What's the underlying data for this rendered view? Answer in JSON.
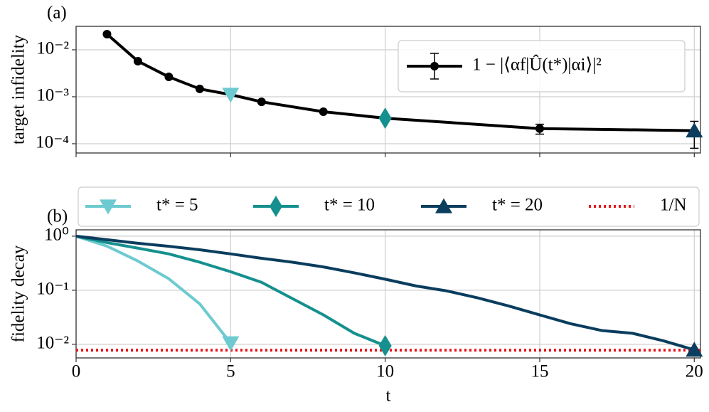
{
  "chart_data": [
    {
      "type": "line",
      "panel_label": "(a)",
      "ylabel": "target infidelity",
      "log_y": true,
      "grid": true,
      "legend": "upper right",
      "show_xticklabels": false,
      "xlim": [
        0,
        20.2
      ],
      "xticks": [
        0,
        5,
        10,
        15,
        20
      ],
      "ylim": [
        6.35e-05,
        0.0316
      ],
      "yticks": [
        {
          "value": 0.0001,
          "label": "10⁻⁴"
        },
        {
          "value": 0.001,
          "label": "10⁻³"
        },
        {
          "value": 0.01,
          "label": "10⁻²"
        }
      ],
      "series": [
        {
          "name": "1 − |⟨αf|Û(t*)|αi⟩|²",
          "color": "#000000",
          "x": [
            1,
            2,
            3,
            4,
            5,
            6,
            8,
            10,
            15,
            20
          ],
          "values": [
            0.0215,
            0.00572,
            0.00265,
            0.00147,
            0.00111,
            0.00078,
            0.00048,
            0.00035,
            0.00021,
            0.00019
          ],
          "yerr": [
            null,
            null,
            null,
            null,
            null,
            null,
            null,
            null,
            5e-05,
            0.00011
          ],
          "markers": [
            "circle",
            "circle",
            "circle",
            "circle",
            "triangle-down",
            "circle",
            "circle",
            "diamond",
            "circle",
            "triangle-up"
          ],
          "marker_colors": [
            "#000000",
            "#000000",
            "#000000",
            "#000000",
            "#6ccad0",
            "#000000",
            "#000000",
            "#15908f",
            "#000000",
            "#0a3d5e"
          ]
        }
      ]
    },
    {
      "type": "line",
      "panel_label": "(b)",
      "ylabel": "fidelity decay",
      "xlabel": "t",
      "log_y": true,
      "grid": true,
      "legend": "above",
      "show_xticklabels": true,
      "xlim": [
        0,
        20.2
      ],
      "xticks": [
        0,
        5,
        10,
        15,
        20
      ],
      "ylim": [
        0.0056,
        1.31
      ],
      "yticks": [
        {
          "value": 0.01,
          "label": "10⁻²"
        },
        {
          "value": 0.1,
          "label": "10⁻¹"
        },
        {
          "value": 1,
          "label": "10⁰"
        }
      ],
      "series": [
        {
          "name": "t* = 5",
          "color": "#6ccad0",
          "end_marker": "triangle-down",
          "x": [
            0,
            1,
            2,
            3,
            4,
            5
          ],
          "values": [
            1,
            0.654,
            0.347,
            0.163,
            0.056,
            0.0105
          ]
        },
        {
          "name": "t* = 10",
          "color": "#15908f",
          "end_marker": "diamond",
          "x": [
            0,
            1,
            2,
            3,
            4,
            5,
            6,
            7,
            8,
            9,
            10
          ],
          "values": [
            1,
            0.76,
            0.6,
            0.47,
            0.33,
            0.22,
            0.14,
            0.07,
            0.035,
            0.016,
            0.0094
          ]
        },
        {
          "name": "t* = 20",
          "color": "#0a3d5e",
          "end_marker": "triangle-up",
          "x": [
            0,
            1,
            2,
            3,
            4,
            5,
            6,
            7,
            8,
            9,
            10,
            11,
            12,
            13,
            14,
            15,
            16,
            17,
            18,
            19,
            20
          ],
          "values": [
            1,
            0.86,
            0.74,
            0.65,
            0.56,
            0.47,
            0.39,
            0.33,
            0.27,
            0.21,
            0.16,
            0.12,
            0.097,
            0.072,
            0.051,
            0.035,
            0.024,
            0.018,
            0.016,
            0.0116,
            0.0079
          ]
        }
      ],
      "hlines": [
        {
          "name": "1/N",
          "value": 0.0078,
          "color": "#e8141a",
          "style": "dotted"
        }
      ]
    }
  ]
}
